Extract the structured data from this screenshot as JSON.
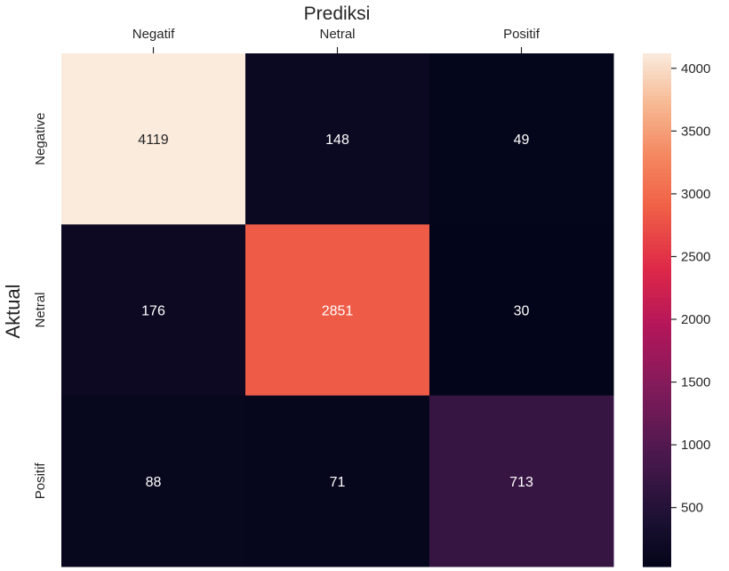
{
  "chart_data": {
    "type": "heatmap",
    "title": "Prediksi",
    "ylabel": "Aktual",
    "x_categories": [
      "Negatif",
      "Netral",
      "Positif"
    ],
    "y_categories": [
      "Negative",
      "Netral",
      "Positif"
    ],
    "values": [
      [
        4119,
        148,
        49
      ],
      [
        176,
        2851,
        30
      ],
      [
        88,
        71,
        713
      ]
    ],
    "colorbar": {
      "min": 30,
      "max": 4119,
      "ticks": [
        500,
        1000,
        1500,
        2000,
        2500,
        3000,
        3500,
        4000
      ],
      "colormap": "rocket"
    },
    "x_axis_position": "top",
    "annotated": true
  }
}
